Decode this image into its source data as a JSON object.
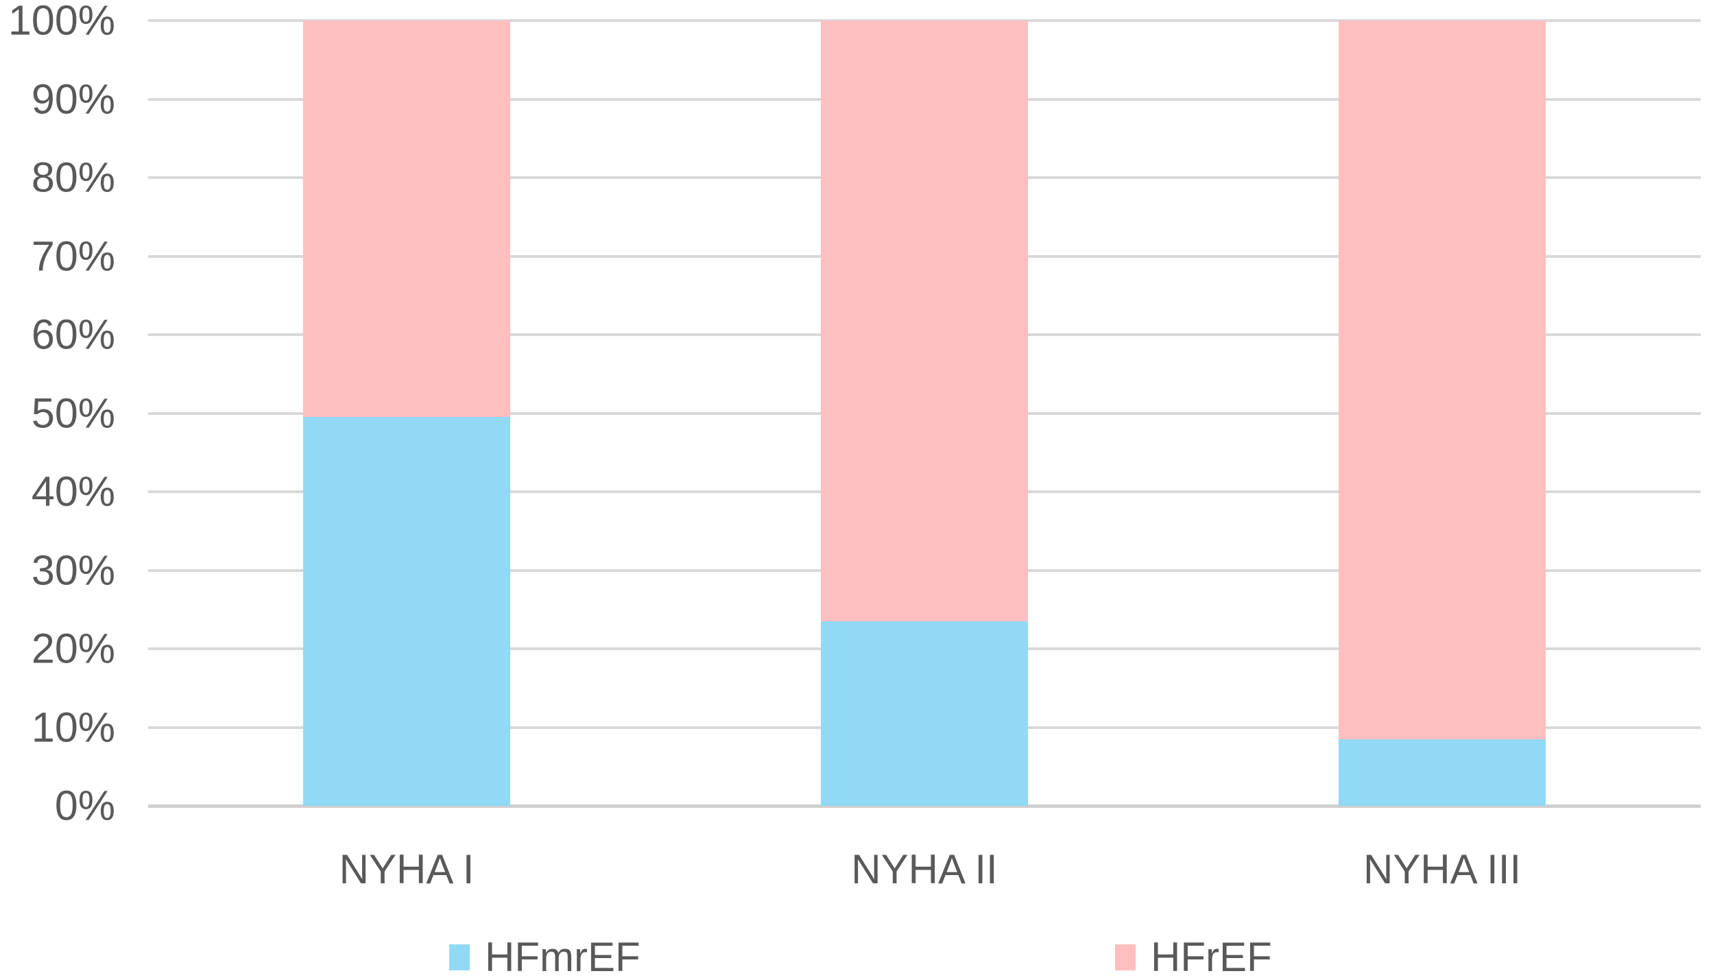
{
  "chart_data": {
    "type": "bar",
    "stacked": true,
    "percent_axis": true,
    "title": "",
    "xlabel": "",
    "ylabel": "",
    "categories": [
      "NYHA I",
      "NYHA II",
      "NYHA III"
    ],
    "series": [
      {
        "name": "HFmrEF",
        "color": "#92d9f5",
        "values": [
          49.5,
          23.5,
          8.5
        ]
      },
      {
        "name": "HFrEF",
        "color": "#ffbec0",
        "values": [
          50.5,
          76.5,
          91.5
        ]
      }
    ],
    "y_ticks": [
      "0%",
      "10%",
      "20%",
      "30%",
      "40%",
      "50%",
      "60%",
      "70%",
      "80%",
      "90%",
      "100%"
    ],
    "ylim": [
      0,
      100
    ],
    "grid": true,
    "gridline_color": "#d9d9d9",
    "axis_line_color": "#cfcfcf",
    "text_color": "#595959",
    "legend_position": "bottom"
  }
}
